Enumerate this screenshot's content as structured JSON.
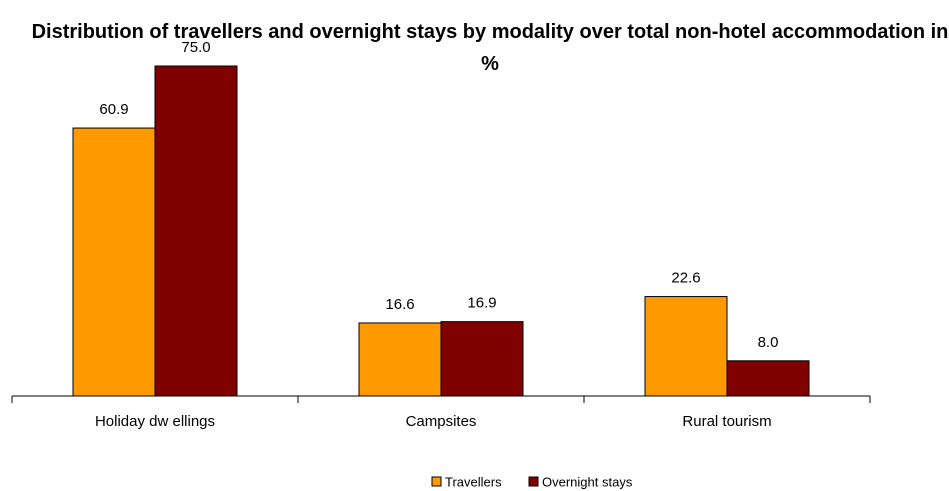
{
  "chart_data": {
    "type": "bar",
    "title": "Distribution of travellers and overnight stays by modality over total non-hotel accommodation in %",
    "categories": [
      "Holiday dw ellings",
      "Campsites",
      "Rural tourism"
    ],
    "series": [
      {
        "name": "Travellers",
        "color": "#ff9900",
        "values": [
          60.9,
          16.6,
          22.6
        ],
        "value_labels": [
          "60.9",
          "16.6",
          "22.6"
        ]
      },
      {
        "name": "Overnight stays",
        "color": "#800000",
        "values": [
          75.0,
          16.9,
          8.0
        ],
        "value_labels": [
          "75.0",
          "16.9",
          "8.0"
        ]
      }
    ],
    "legend": "bottom"
  }
}
